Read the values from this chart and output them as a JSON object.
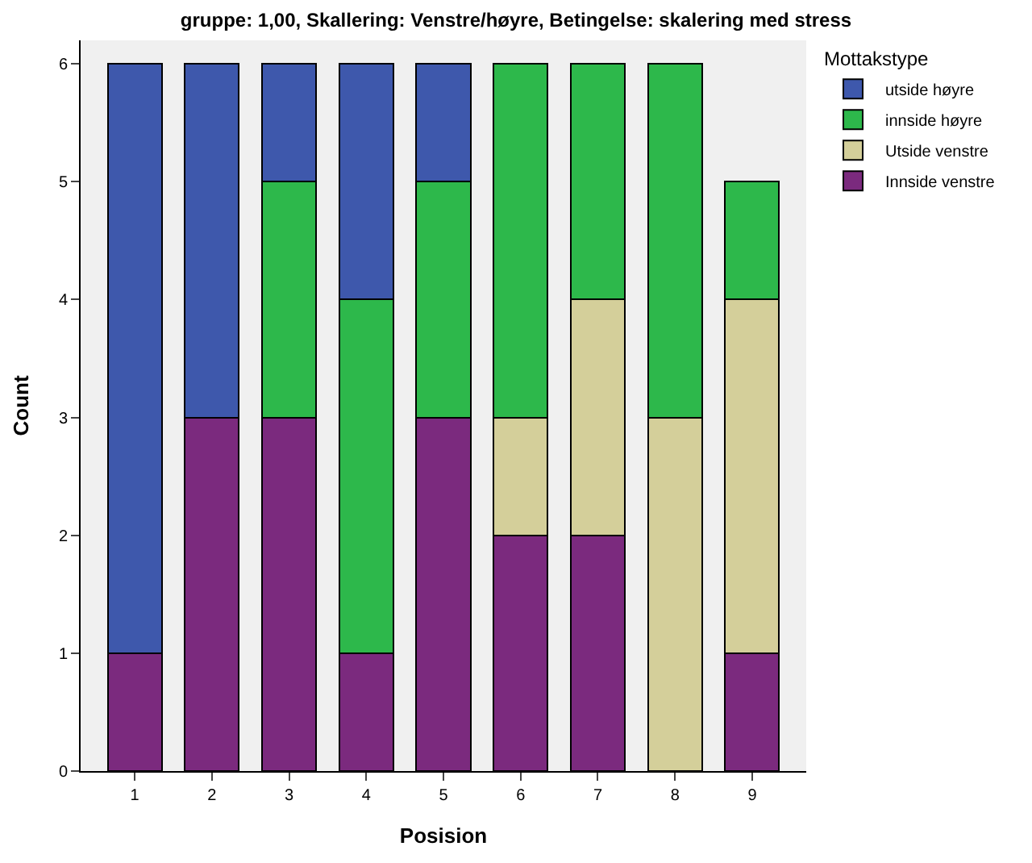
{
  "chart_data": {
    "type": "bar",
    "title": "gruppe: 1,00, Skallering: Venstre/høyre, Betingelse: skalering med stress",
    "xlabel": "Posision",
    "ylabel": "Count",
    "legend_title": "Mottakstype",
    "categories": [
      "1",
      "2",
      "3",
      "4",
      "5",
      "6",
      "7",
      "8",
      "9"
    ],
    "series": [
      {
        "name": "Innside venstre",
        "color": "#7b2a7e",
        "values": [
          1,
          3,
          3,
          1,
          3,
          2,
          2,
          null,
          1
        ]
      },
      {
        "name": "Utside venstre",
        "color": "#d4cf9a",
        "values": [
          null,
          null,
          null,
          null,
          null,
          1,
          2,
          3,
          3
        ]
      },
      {
        "name": "innside høyre",
        "color": "#2db84b",
        "values": [
          null,
          null,
          2,
          3,
          2,
          3,
          2,
          3,
          1
        ]
      },
      {
        "name": "utside høyre",
        "color": "#3e58ac",
        "values": [
          5,
          3,
          1,
          2,
          1,
          null,
          null,
          null,
          null
        ]
      }
    ],
    "stacked": true,
    "ylim": [
      0,
      6.2
    ],
    "yticks": [
      0,
      1,
      2,
      3,
      4,
      5,
      6
    ],
    "grid": false,
    "legend": "top right"
  }
}
